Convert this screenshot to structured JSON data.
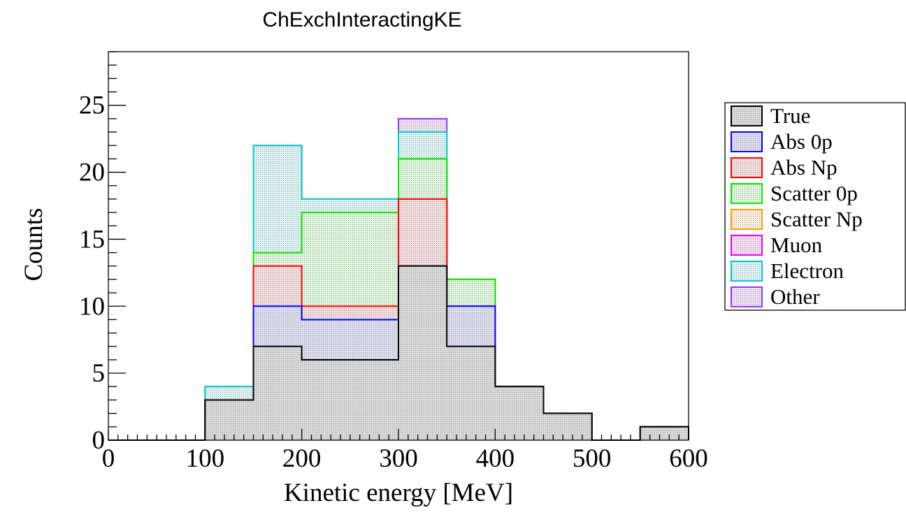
{
  "chart_data": {
    "type": "bar",
    "title": "ChExchInteractingKE",
    "xlabel": "Kinetic energy [MeV]",
    "ylabel": "Counts",
    "xlim": [
      0,
      600
    ],
    "ylim": [
      0,
      29
    ],
    "x_ticks": [
      0,
      100,
      200,
      300,
      400,
      500,
      600
    ],
    "y_ticks": [
      0,
      5,
      10,
      15,
      20,
      25
    ],
    "grid": false,
    "legend_position": "right",
    "bin_edges": [
      0,
      50,
      100,
      150,
      200,
      250,
      300,
      350,
      400,
      450,
      500,
      550,
      600
    ],
    "stacked": true,
    "series": [
      {
        "name": "True",
        "color": "#000000",
        "fill": "#d9d9d9",
        "values": [
          0,
          0,
          3,
          7,
          6,
          6,
          13,
          7,
          4,
          2,
          0,
          1
        ]
      },
      {
        "name": "Abs 0p",
        "color": "#0000ff",
        "fill": "#dcdcf0",
        "values": [
          0,
          0,
          0,
          3,
          3,
          3,
          0,
          3,
          0,
          0,
          0,
          0
        ]
      },
      {
        "name": "Abs Np",
        "color": "#ff0000",
        "fill": "#f3dcdc",
        "values": [
          0,
          0,
          0,
          3,
          1,
          1,
          5,
          0,
          0,
          0,
          0,
          0
        ]
      },
      {
        "name": "Scatter 0p",
        "color": "#00ee00",
        "fill": "#dff5dc",
        "values": [
          0,
          0,
          0,
          1,
          7,
          7,
          3,
          2,
          0,
          0,
          0,
          0
        ]
      },
      {
        "name": "Scatter Np",
        "color": "#ff9900",
        "fill": "#fbeedc",
        "values": [
          0,
          0,
          0,
          0,
          0,
          0,
          0,
          0,
          0,
          0,
          0,
          0
        ]
      },
      {
        "name": "Muon",
        "color": "#ee00ee",
        "fill": "#f5dcf5",
        "values": [
          0,
          0,
          0,
          0,
          0,
          0,
          0,
          0,
          0,
          0,
          0,
          0
        ]
      },
      {
        "name": "Electron",
        "color": "#00cccc",
        "fill": "#dcf2f2",
        "values": [
          0,
          0,
          1,
          8,
          1,
          1,
          2,
          0,
          0,
          0,
          0,
          0
        ]
      },
      {
        "name": "Other",
        "color": "#9933ff",
        "fill": "#ebe0f5",
        "values": [
          0,
          0,
          0,
          0,
          0,
          0,
          1,
          0,
          0,
          0,
          0,
          0
        ]
      }
    ]
  }
}
